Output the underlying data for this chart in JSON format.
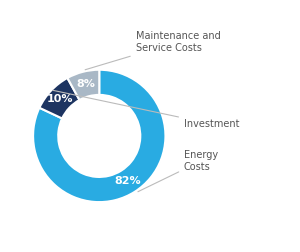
{
  "slices": [
    82,
    10,
    8
  ],
  "labels": [
    "Energy\nCosts",
    "Investment",
    "Maintenance and\nService Costs"
  ],
  "colors": [
    "#29ABE2",
    "#1D3461",
    "#A9B8C6"
  ],
  "pct_labels": [
    "82%",
    "10%",
    "8%"
  ],
  "pct_colors": [
    "white",
    "white",
    "white"
  ],
  "donut_width": 0.38,
  "background_color": "#ffffff",
  "line_color": "#BBBBBB",
  "label_color": "#555555",
  "label_fontsize": 7.0,
  "pct_fontsize": 8.0
}
